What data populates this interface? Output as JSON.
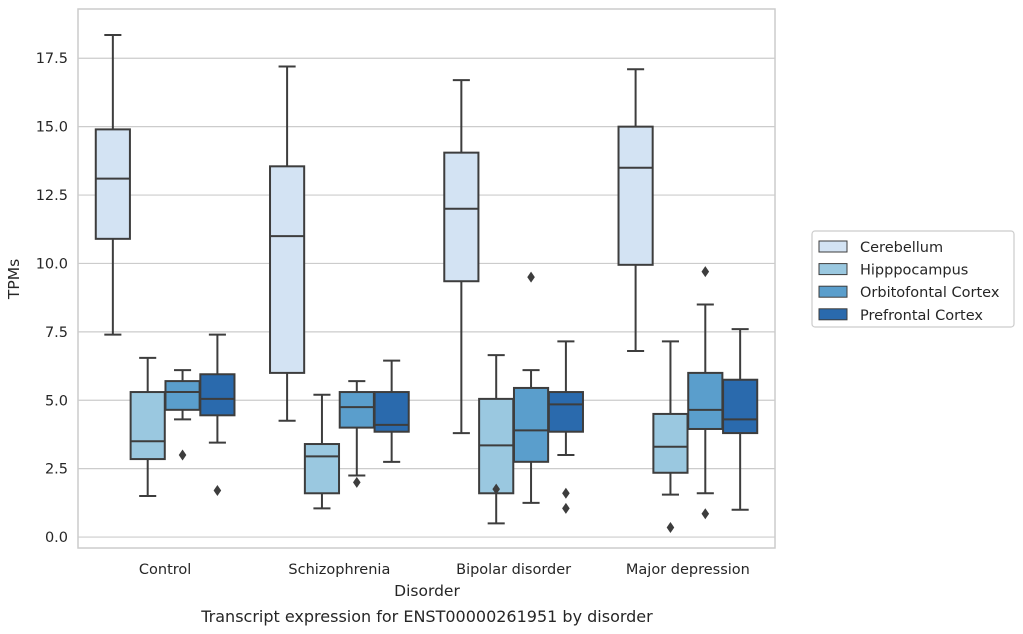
{
  "chart_data": {
    "type": "box",
    "caption": "Transcript expression for ENST00000261951 by disorder",
    "xlabel": "Disorder",
    "ylabel": "TPMs",
    "ylim": [
      -0.4,
      19.3
    ],
    "yticks": [
      0.0,
      2.5,
      5.0,
      7.5,
      10.0,
      12.5,
      15.0,
      17.5
    ],
    "ytick_labels": [
      "0.0",
      "2.5",
      "5.0",
      "7.5",
      "10.0",
      "12.5",
      "15.0",
      "17.5"
    ],
    "grid": "horizontal",
    "legend_position": "right",
    "categories": [
      "Control",
      "Schizophrenia",
      "Bipolar disorder",
      "Major depression"
    ],
    "series": [
      {
        "name": "Cerebellum",
        "color": "#d3e3f3",
        "boxes": [
          {
            "q1": 10.9,
            "median": 13.1,
            "q3": 14.9,
            "whisker_low": 7.4,
            "whisker_high": 18.35,
            "outliers": []
          },
          {
            "q1": 6.0,
            "median": 11.0,
            "q3": 13.55,
            "whisker_low": 4.25,
            "whisker_high": 17.2,
            "outliers": []
          },
          {
            "q1": 9.35,
            "median": 12.0,
            "q3": 14.05,
            "whisker_low": 3.8,
            "whisker_high": 16.7,
            "outliers": []
          },
          {
            "q1": 9.95,
            "median": 13.5,
            "q3": 15.0,
            "whisker_low": 6.8,
            "whisker_high": 17.1,
            "outliers": []
          }
        ]
      },
      {
        "name": "Hipppocampus",
        "color": "#9ac8e0",
        "boxes": [
          {
            "q1": 2.85,
            "median": 3.5,
            "q3": 5.3,
            "whisker_low": 1.5,
            "whisker_high": 6.55,
            "outliers": []
          },
          {
            "q1": 1.6,
            "median": 2.95,
            "q3": 3.4,
            "whisker_low": 1.05,
            "whisker_high": 5.2,
            "outliers": []
          },
          {
            "q1": 1.6,
            "median": 3.35,
            "q3": 5.05,
            "whisker_low": 0.5,
            "whisker_high": 6.65,
            "outliers": [
              1.75
            ]
          },
          {
            "q1": 2.35,
            "median": 3.3,
            "q3": 4.5,
            "whisker_low": 1.55,
            "whisker_high": 7.15,
            "outliers": [
              0.35
            ]
          }
        ]
      },
      {
        "name": "Orbitofontal Cortex",
        "color": "#5a9ecc",
        "boxes": [
          {
            "q1": 4.65,
            "median": 5.3,
            "q3": 5.7,
            "whisker_low": 4.3,
            "whisker_high": 6.1,
            "outliers": [
              3.0
            ]
          },
          {
            "q1": 4.0,
            "median": 4.75,
            "q3": 5.3,
            "whisker_low": 2.25,
            "whisker_high": 5.7,
            "outliers": [
              2.0
            ]
          },
          {
            "q1": 2.75,
            "median": 3.9,
            "q3": 5.45,
            "whisker_low": 1.25,
            "whisker_high": 6.1,
            "outliers": [
              9.5
            ]
          },
          {
            "q1": 3.95,
            "median": 4.65,
            "q3": 6.0,
            "whisker_low": 1.6,
            "whisker_high": 8.5,
            "outliers": [
              9.7,
              0.85
            ]
          }
        ]
      },
      {
        "name": "Prefrontal Cortex",
        "color": "#2a6aad",
        "boxes": [
          {
            "q1": 4.45,
            "median": 5.05,
            "q3": 5.95,
            "whisker_low": 3.45,
            "whisker_high": 7.4,
            "outliers": [
              1.7
            ]
          },
          {
            "q1": 3.85,
            "median": 4.1,
            "q3": 5.3,
            "whisker_low": 2.75,
            "whisker_high": 6.45,
            "outliers": []
          },
          {
            "q1": 3.85,
            "median": 4.85,
            "q3": 5.3,
            "whisker_low": 3.0,
            "whisker_high": 7.15,
            "outliers": [
              1.6,
              1.05
            ]
          },
          {
            "q1": 3.8,
            "median": 4.3,
            "q3": 5.75,
            "whisker_low": 1.0,
            "whisker_high": 7.6,
            "outliers": []
          }
        ]
      }
    ]
  }
}
